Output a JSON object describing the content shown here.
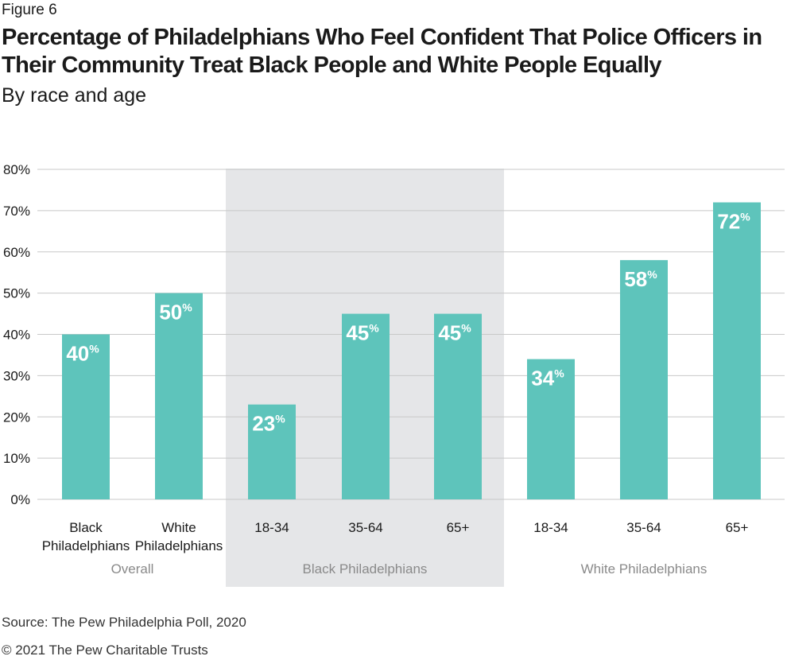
{
  "figure_label": "Figure 6",
  "title": "Percentage of Philadelphians Who Feel Confident That Police Officers in Their Community Treat Black People and White People Equally",
  "subtitle": "By race and age",
  "source": "Source: The Pew Philadelphia Poll, 2020",
  "copyright": "© 2021 The Pew Charitable Trusts",
  "colors": {
    "bar": "#5ec4bb",
    "shade": "#e5e6e8",
    "grid": "#c8c8c8",
    "label": "#ffffff",
    "group_label": "#8a8a8a"
  },
  "chart_data": {
    "type": "bar",
    "title": "Percentage of Philadelphians Who Feel Confident That Police Officers in Their Community Treat Black People and White People Equally",
    "subtitle": "By race and age",
    "categories": [
      "Black Philadelphians",
      "White Philadelphians",
      "18-34",
      "35-64",
      "65+",
      "18-34",
      "35-64",
      "65+"
    ],
    "category_lines": [
      [
        "Black",
        "Philadelphians"
      ],
      [
        "White",
        "Philadelphians"
      ],
      [
        "18-34"
      ],
      [
        "35-64"
      ],
      [
        "65+"
      ],
      [
        "18-34"
      ],
      [
        "35-64"
      ],
      [
        "65+"
      ]
    ],
    "values": [
      40,
      50,
      23,
      45,
      45,
      34,
      58,
      72
    ],
    "value_labels": [
      "40",
      "50",
      "23",
      "45",
      "45",
      "34",
      "58",
      "72"
    ],
    "value_suffix": "%",
    "groups": [
      {
        "name": "Overall",
        "start": 0,
        "end": 1,
        "shaded": false
      },
      {
        "name": "Black Philadelphians",
        "start": 2,
        "end": 4,
        "shaded": true
      },
      {
        "name": "White Philadelphians",
        "start": 5,
        "end": 7,
        "shaded": false
      }
    ],
    "ylim": [
      0,
      80
    ],
    "yticks": [
      "0%",
      "10%",
      "20%",
      "30%",
      "40%",
      "50%",
      "60%",
      "70%",
      "80%"
    ],
    "ytick_values": [
      0,
      10,
      20,
      30,
      40,
      50,
      60,
      70,
      80
    ],
    "grid": true,
    "legend": "none"
  }
}
